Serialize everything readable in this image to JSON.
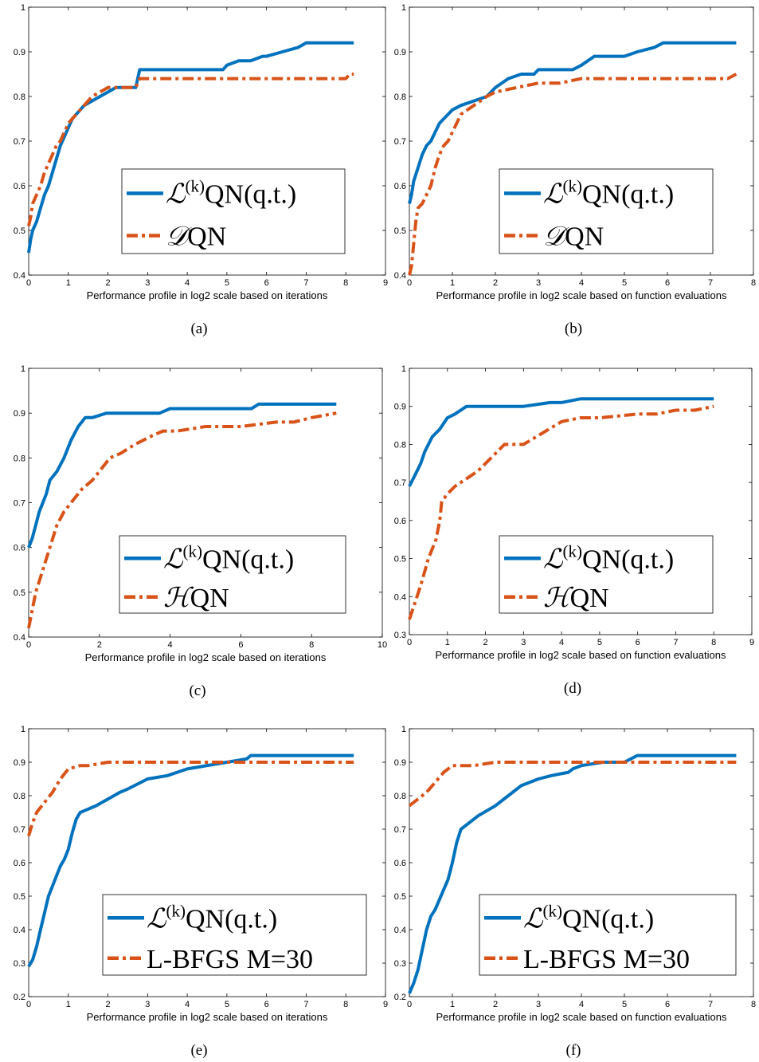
{
  "colors": {
    "blue": "#0072bd",
    "red": "#d95319"
  },
  "chart_data": [
    {
      "id": "a",
      "type": "line",
      "caption": "(a)",
      "xlabel": "Performance profile in  log2 scale based on iterations",
      "ylabel": "",
      "xlim": [
        0,
        9
      ],
      "ylim": [
        0.4,
        1
      ],
      "xticks": [
        "0",
        "1",
        "2",
        "3",
        "4",
        "5",
        "6",
        "7",
        "8",
        "9"
      ],
      "yticks": [
        "0.4",
        "0.5",
        "0.6",
        "0.7",
        "0.8",
        "0.9",
        "1"
      ],
      "legend": {
        "prefix": "L",
        "sup": "(k)",
        "entries": [
          "QN(q.t.)",
          "DQN"
        ]
      },
      "series": [
        {
          "name": "L(k)QN(q.t.)",
          "color": "#0072bd",
          "dash": "solid",
          "x": [
            0,
            0.05,
            0.1,
            0.2,
            0.3,
            0.4,
            0.5,
            0.6,
            0.7,
            0.8,
            0.9,
            1.0,
            1.1,
            1.2,
            1.4,
            1.6,
            1.8,
            2.0,
            2.2,
            2.5,
            2.7,
            2.75,
            2.8,
            3.0,
            3.5,
            4.0,
            4.5,
            4.9,
            5.0,
            5.3,
            5.6,
            5.9,
            6.0,
            6.4,
            6.8,
            7.0,
            7.5,
            8.0,
            8.2
          ],
          "y": [
            0.45,
            0.48,
            0.5,
            0.52,
            0.55,
            0.58,
            0.6,
            0.63,
            0.66,
            0.69,
            0.71,
            0.73,
            0.75,
            0.76,
            0.78,
            0.79,
            0.8,
            0.81,
            0.82,
            0.82,
            0.82,
            0.84,
            0.86,
            0.86,
            0.86,
            0.86,
            0.86,
            0.86,
            0.87,
            0.88,
            0.88,
            0.89,
            0.89,
            0.9,
            0.91,
            0.92,
            0.92,
            0.92,
            0.92
          ]
        },
        {
          "name": "DQN",
          "color": "#d95319",
          "dash": "dashdot",
          "x": [
            0,
            0.05,
            0.1,
            0.2,
            0.3,
            0.4,
            0.5,
            0.6,
            0.7,
            0.8,
            0.9,
            1.0,
            1.1,
            1.2,
            1.4,
            1.6,
            1.8,
            2.0,
            2.2,
            2.5,
            2.7,
            2.75,
            2.8,
            3.5,
            4.0,
            5.0,
            6.0,
            7.0,
            7.5,
            8.0,
            8.1,
            8.2
          ],
          "y": [
            0.51,
            0.53,
            0.56,
            0.58,
            0.6,
            0.63,
            0.65,
            0.67,
            0.69,
            0.7,
            0.72,
            0.74,
            0.75,
            0.76,
            0.78,
            0.8,
            0.81,
            0.82,
            0.82,
            0.82,
            0.82,
            0.83,
            0.84,
            0.84,
            0.84,
            0.84,
            0.84,
            0.84,
            0.84,
            0.84,
            0.85,
            0.85
          ]
        }
      ]
    },
    {
      "id": "b",
      "type": "line",
      "caption": "(b)",
      "xlabel": "Performance profile in log2 scale based on function evaluations",
      "ylabel": "",
      "xlim": [
        0,
        8
      ],
      "ylim": [
        0.4,
        1
      ],
      "xticks": [
        "0",
        "1",
        "2",
        "3",
        "4",
        "5",
        "6",
        "7",
        "8"
      ],
      "yticks": [
        "0.4",
        "0.5",
        "0.6",
        "0.7",
        "0.8",
        "0.9",
        "1"
      ],
      "legend": {
        "prefix": "L",
        "sup": "(k)",
        "entries": [
          "QN(q.t.)",
          "DQN"
        ]
      },
      "series": [
        {
          "name": "L(k)QN(q.t.)",
          "color": "#0072bd",
          "dash": "solid",
          "x": [
            0,
            0.05,
            0.1,
            0.2,
            0.3,
            0.4,
            0.5,
            0.6,
            0.7,
            0.8,
            1.0,
            1.2,
            1.5,
            1.8,
            2.0,
            2.3,
            2.6,
            2.9,
            3.0,
            3.5,
            3.8,
            4.0,
            4.3,
            5.0,
            5.3,
            5.7,
            5.9,
            6.5,
            7.0,
            7.6
          ],
          "y": [
            0.56,
            0.58,
            0.61,
            0.64,
            0.67,
            0.69,
            0.7,
            0.72,
            0.74,
            0.75,
            0.77,
            0.78,
            0.79,
            0.8,
            0.82,
            0.84,
            0.85,
            0.85,
            0.86,
            0.86,
            0.86,
            0.87,
            0.89,
            0.89,
            0.9,
            0.91,
            0.92,
            0.92,
            0.92,
            0.92
          ]
        },
        {
          "name": "DQN",
          "color": "#d95319",
          "dash": "dashdot",
          "x": [
            0,
            0.05,
            0.1,
            0.15,
            0.2,
            0.3,
            0.4,
            0.5,
            0.6,
            0.7,
            0.8,
            0.9,
            1.0,
            1.1,
            1.2,
            1.5,
            1.8,
            2.0,
            2.5,
            3.0,
            3.5,
            4.0,
            5.0,
            6.0,
            7.0,
            7.4,
            7.6
          ],
          "y": [
            0.4,
            0.42,
            0.47,
            0.52,
            0.55,
            0.56,
            0.58,
            0.6,
            0.64,
            0.67,
            0.69,
            0.7,
            0.72,
            0.74,
            0.76,
            0.78,
            0.8,
            0.81,
            0.82,
            0.83,
            0.83,
            0.84,
            0.84,
            0.84,
            0.84,
            0.84,
            0.85
          ]
        }
      ]
    },
    {
      "id": "c",
      "type": "line",
      "caption": "(c)",
      "xlabel": "Performance profile in  log2 scale based on iterations",
      "ylabel": "",
      "xlim": [
        0,
        10
      ],
      "ylim": [
        0.4,
        1
      ],
      "xticks": [
        "0",
        "2",
        "4",
        "6",
        "8",
        "10"
      ],
      "yticks": [
        "0.4",
        "0.5",
        "0.6",
        "0.7",
        "0.8",
        "0.9",
        "1"
      ],
      "legend": {
        "prefix": "H",
        "sup": "(k)",
        "entries": [
          "QN(q.t.)",
          "HQN"
        ]
      },
      "series": [
        {
          "name": "L(k)QN(q.t.)",
          "color": "#0072bd",
          "dash": "solid",
          "x": [
            0,
            0.1,
            0.2,
            0.3,
            0.4,
            0.5,
            0.6,
            0.8,
            1.0,
            1.2,
            1.4,
            1.6,
            1.8,
            2.2,
            3.0,
            3.7,
            4.0,
            5.0,
            6.3,
            6.5,
            7.5,
            8.7
          ],
          "y": [
            0.6,
            0.62,
            0.65,
            0.68,
            0.7,
            0.72,
            0.75,
            0.77,
            0.8,
            0.84,
            0.87,
            0.89,
            0.89,
            0.9,
            0.9,
            0.9,
            0.91,
            0.91,
            0.91,
            0.92,
            0.92,
            0.92
          ]
        },
        {
          "name": "HQN",
          "color": "#d95319",
          "dash": "dashdot",
          "x": [
            0,
            0.1,
            0.2,
            0.4,
            0.6,
            0.8,
            1.0,
            1.2,
            1.5,
            1.8,
            2.0,
            2.3,
            2.6,
            3.0,
            3.5,
            3.8,
            4.2,
            5.0,
            6.0,
            7.0,
            7.5,
            8.0,
            8.7
          ],
          "y": [
            0.42,
            0.46,
            0.5,
            0.55,
            0.6,
            0.65,
            0.68,
            0.7,
            0.73,
            0.75,
            0.77,
            0.8,
            0.81,
            0.83,
            0.85,
            0.86,
            0.86,
            0.87,
            0.87,
            0.88,
            0.88,
            0.89,
            0.9
          ]
        }
      ]
    },
    {
      "id": "d",
      "type": "line",
      "caption": "(d)",
      "xlabel": "Performance profile in log2 scale based on function evaluations",
      "ylabel": "",
      "xlim": [
        0,
        9
      ],
      "ylim": [
        0.3,
        1
      ],
      "xticks": [
        "0",
        "1",
        "2",
        "3",
        "4",
        "5",
        "6",
        "7",
        "8",
        "9"
      ],
      "yticks": [
        "0.3",
        "0.4",
        "0.5",
        "0.6",
        "0.7",
        "0.8",
        "0.9",
        "1"
      ],
      "legend": {
        "prefix": "H",
        "sup": "(k)",
        "entries": [
          "QN(q.t.)",
          "HQN"
        ]
      },
      "series": [
        {
          "name": "L(k)QN(q.t.)",
          "color": "#0072bd",
          "dash": "solid",
          "x": [
            0,
            0.1,
            0.2,
            0.3,
            0.4,
            0.5,
            0.6,
            0.8,
            1.0,
            1.2,
            1.5,
            2.0,
            3.0,
            3.7,
            4.0,
            4.5,
            5.0,
            6.0,
            7.0,
            8.0
          ],
          "y": [
            0.69,
            0.71,
            0.73,
            0.75,
            0.78,
            0.8,
            0.82,
            0.84,
            0.87,
            0.88,
            0.9,
            0.9,
            0.9,
            0.91,
            0.91,
            0.92,
            0.92,
            0.92,
            0.92,
            0.92
          ]
        },
        {
          "name": "HQN",
          "color": "#d95319",
          "dash": "dashdot",
          "x": [
            0,
            0.1,
            0.2,
            0.3,
            0.5,
            0.7,
            0.8,
            0.85,
            1.0,
            1.2,
            1.5,
            1.8,
            2.0,
            2.3,
            2.5,
            3.0,
            3.5,
            4.0,
            4.5,
            5.0,
            6.0,
            6.5,
            7.0,
            7.5,
            8.0
          ],
          "y": [
            0.34,
            0.37,
            0.4,
            0.43,
            0.5,
            0.55,
            0.6,
            0.65,
            0.67,
            0.69,
            0.71,
            0.73,
            0.75,
            0.78,
            0.8,
            0.8,
            0.83,
            0.86,
            0.87,
            0.87,
            0.88,
            0.88,
            0.89,
            0.89,
            0.9
          ]
        }
      ]
    },
    {
      "id": "e",
      "type": "line",
      "caption": "(e)",
      "xlabel": "Performance profile in  log2 scale based on iterations",
      "ylabel": "",
      "xlim": [
        0,
        9
      ],
      "ylim": [
        0.2,
        1
      ],
      "xticks": [
        "0",
        "1",
        "2",
        "3",
        "4",
        "5",
        "6",
        "7",
        "8",
        "9"
      ],
      "yticks": [
        "0.2",
        "0.3",
        "0.4",
        "0.5",
        "0.6",
        "0.7",
        "0.8",
        "0.9",
        "1"
      ],
      "legend": {
        "prefix": "L",
        "sup": "(k)",
        "entries": [
          "QN(q.t.)",
          "L-BFGS M=30"
        ]
      },
      "series": [
        {
          "name": "L(k)QN(q.t.)",
          "color": "#0072bd",
          "dash": "solid",
          "x": [
            0,
            0.1,
            0.2,
            0.3,
            0.4,
            0.5,
            0.6,
            0.7,
            0.8,
            0.9,
            1.0,
            1.1,
            1.2,
            1.3,
            1.5,
            1.7,
            2.0,
            2.3,
            2.5,
            3.0,
            3.5,
            4.0,
            4.5,
            5.0,
            5.5,
            5.6,
            6.0,
            7.0,
            8.2
          ],
          "y": [
            0.29,
            0.31,
            0.35,
            0.4,
            0.45,
            0.5,
            0.53,
            0.56,
            0.59,
            0.61,
            0.64,
            0.69,
            0.73,
            0.75,
            0.76,
            0.77,
            0.79,
            0.81,
            0.82,
            0.85,
            0.86,
            0.88,
            0.89,
            0.9,
            0.91,
            0.92,
            0.92,
            0.92,
            0.92
          ]
        },
        {
          "name": "L-BFGS M=30",
          "color": "#d95319",
          "dash": "dashdot",
          "x": [
            0,
            0.05,
            0.1,
            0.2,
            0.4,
            0.6,
            0.8,
            1.0,
            1.3,
            1.5,
            2.0,
            3.0,
            5.0,
            7.0,
            8.2
          ],
          "y": [
            0.68,
            0.7,
            0.72,
            0.75,
            0.78,
            0.81,
            0.85,
            0.88,
            0.89,
            0.89,
            0.9,
            0.9,
            0.9,
            0.9,
            0.9
          ]
        }
      ]
    },
    {
      "id": "f",
      "type": "line",
      "caption": "(f)",
      "xlabel": "Performance profile in log2 scale based on function evaluations",
      "ylabel": "",
      "xlim": [
        0,
        8
      ],
      "ylim": [
        0.2,
        1
      ],
      "xticks": [
        "0",
        "1",
        "2",
        "3",
        "4",
        "5",
        "6",
        "7",
        "8"
      ],
      "yticks": [
        "0.2",
        "0.3",
        "0.4",
        "0.5",
        "0.6",
        "0.7",
        "0.8",
        "0.9",
        "1"
      ],
      "legend": {
        "prefix": "L",
        "sup": "(k)",
        "entries": [
          "QN(q.t.)",
          "L-BFGS M=30"
        ]
      },
      "series": [
        {
          "name": "L(k)QN(q.t.)",
          "color": "#0072bd",
          "dash": "solid",
          "x": [
            0,
            0.1,
            0.2,
            0.3,
            0.4,
            0.5,
            0.6,
            0.7,
            0.8,
            0.9,
            1.0,
            1.1,
            1.2,
            1.4,
            1.6,
            2.0,
            2.3,
            2.6,
            3.0,
            3.3,
            3.7,
            3.8,
            4.0,
            4.5,
            5.0,
            5.3,
            6.0,
            7.6
          ],
          "y": [
            0.21,
            0.24,
            0.28,
            0.34,
            0.4,
            0.44,
            0.46,
            0.49,
            0.52,
            0.55,
            0.6,
            0.66,
            0.7,
            0.72,
            0.74,
            0.77,
            0.8,
            0.83,
            0.85,
            0.86,
            0.87,
            0.88,
            0.89,
            0.9,
            0.9,
            0.92,
            0.92,
            0.92
          ]
        },
        {
          "name": "L-BFGS M=30",
          "color": "#d95319",
          "dash": "dashdot",
          "x": [
            0,
            0.1,
            0.2,
            0.4,
            0.6,
            0.8,
            1.0,
            1.5,
            2.0,
            3.0,
            4.0,
            6.0,
            7.6
          ],
          "y": [
            0.77,
            0.78,
            0.79,
            0.81,
            0.84,
            0.87,
            0.89,
            0.89,
            0.9,
            0.9,
            0.9,
            0.9,
            0.9
          ]
        }
      ]
    }
  ]
}
